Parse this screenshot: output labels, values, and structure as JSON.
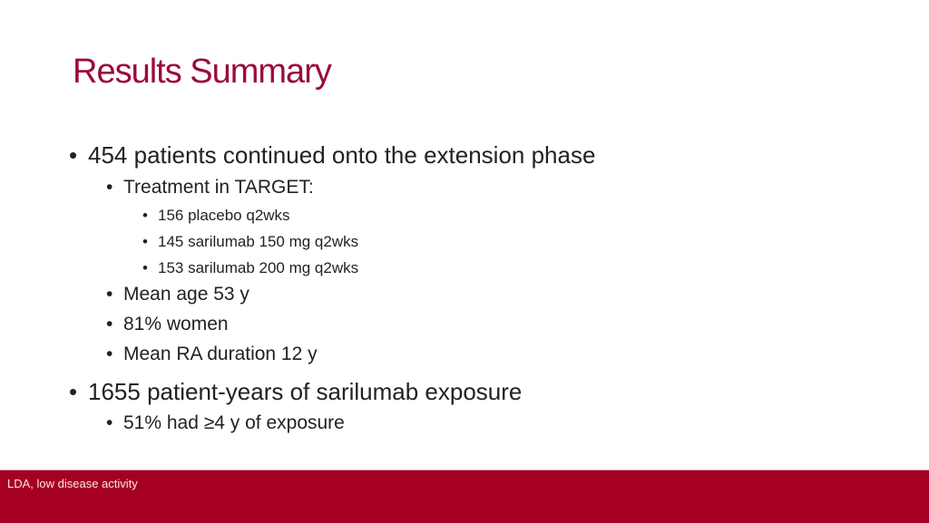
{
  "title": "Results Summary",
  "bullets": [
    {
      "text": "454 patients continued onto the extension phase"
    },
    {
      "text": "Treatment in TARGET:"
    },
    {
      "text": "156 placebo q2wks"
    },
    {
      "text": "145 sarilumab 150 mg q2wks"
    },
    {
      "text": "153 sarilumab 200 mg q2wks"
    },
    {
      "text": "Mean age 53 y"
    },
    {
      "text": "81% women"
    },
    {
      "text": "Mean RA duration 12 y"
    },
    {
      "text": "1655 patient-years of sarilumab exposure"
    },
    {
      "text": "51% had ≥4 y of exposure"
    }
  ],
  "bullet_glyph": "•",
  "footer": {
    "note": "LDA, low disease activity"
  },
  "colors": {
    "title": "#9b0b3a",
    "footer": "#a50021"
  }
}
